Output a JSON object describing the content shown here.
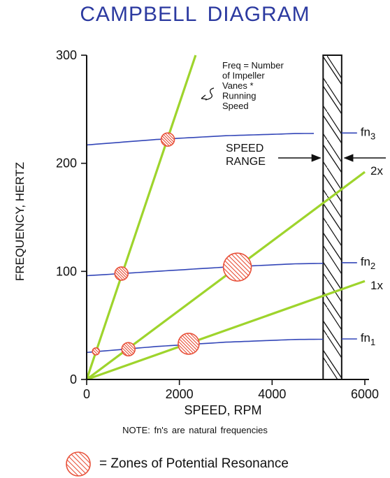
{
  "chart_data": {
    "type": "line",
    "title": "CAMPBELL DIAGRAM",
    "xlabel": "SPEED, RPM",
    "ylabel": "FREQUENCY, HERTZ",
    "xlim": [
      0,
      6000
    ],
    "ylim": [
      0,
      300
    ],
    "xticks": [
      0,
      2000,
      4000,
      6000
    ],
    "yticks": [
      0,
      100,
      200,
      300
    ],
    "grid": false,
    "series": [
      {
        "name": "fn1",
        "kind": "natural-frequency",
        "color": "#3346b8",
        "x": [
          0,
          1500,
          3000,
          4500,
          6000
        ],
        "y": [
          25,
          30.5,
          34.5,
          37,
          37.5
        ]
      },
      {
        "name": "fn2",
        "kind": "natural-frequency",
        "color": "#3346b8",
        "x": [
          0,
          1500,
          3000,
          4500,
          6000
        ],
        "y": [
          96,
          100,
          104,
          107,
          108
        ]
      },
      {
        "name": "fn3",
        "kind": "natural-frequency",
        "color": "#3346b8",
        "x": [
          0,
          1500,
          3000,
          4500,
          6000
        ],
        "y": [
          217,
          222,
          225.5,
          227.5,
          228
        ]
      },
      {
        "name": "1x",
        "kind": "excitation",
        "color": "#9ed42c",
        "x": [
          0,
          6000
        ],
        "y": [
          0,
          91
        ]
      },
      {
        "name": "2x",
        "kind": "excitation",
        "color": "#9ed42c",
        "x": [
          0,
          6000
        ],
        "y": [
          0,
          192
        ]
      },
      {
        "name": "vanes",
        "kind": "excitation",
        "color": "#9ed42c",
        "x": [
          0,
          2350
        ],
        "y": [
          0,
          300
        ]
      }
    ],
    "speed_range": {
      "x": [
        5100,
        5500
      ],
      "label": "SPEED\nRANGE"
    },
    "resonance_zones": [
      {
        "x": 1750,
        "y": 222,
        "size": "small"
      },
      {
        "x": 750,
        "y": 98,
        "size": "small"
      },
      {
        "x": 200,
        "y": 26,
        "size": "tiny"
      },
      {
        "x": 900,
        "y": 28,
        "size": "small"
      },
      {
        "x": 2200,
        "y": 33,
        "size": "medium"
      },
      {
        "x": 3250,
        "y": 104,
        "size": "large"
      }
    ],
    "annotations": {
      "vane_line": "Freq = Number\nof Impeller\nVanes *\nRunning\nSpeed",
      "speed_range": "SPEED\nRANGE"
    },
    "line_labels": {
      "fn3": {
        "base": "fn",
        "sub": "3"
      },
      "fn2": {
        "base": "fn",
        "sub": "2"
      },
      "fn1": {
        "base": "fn",
        "sub": "1"
      },
      "2x": "2x",
      "1x": "1x"
    },
    "note": "NOTE:  fn's are natural frequencies",
    "legend_text": "= Zones of Potential Resonance",
    "colors": {
      "title": "#2c3aa0",
      "natural_frequency": "#3346b8",
      "excitation": "#9ed42c",
      "resonance": "#e8513a",
      "axis": "#111111"
    }
  }
}
